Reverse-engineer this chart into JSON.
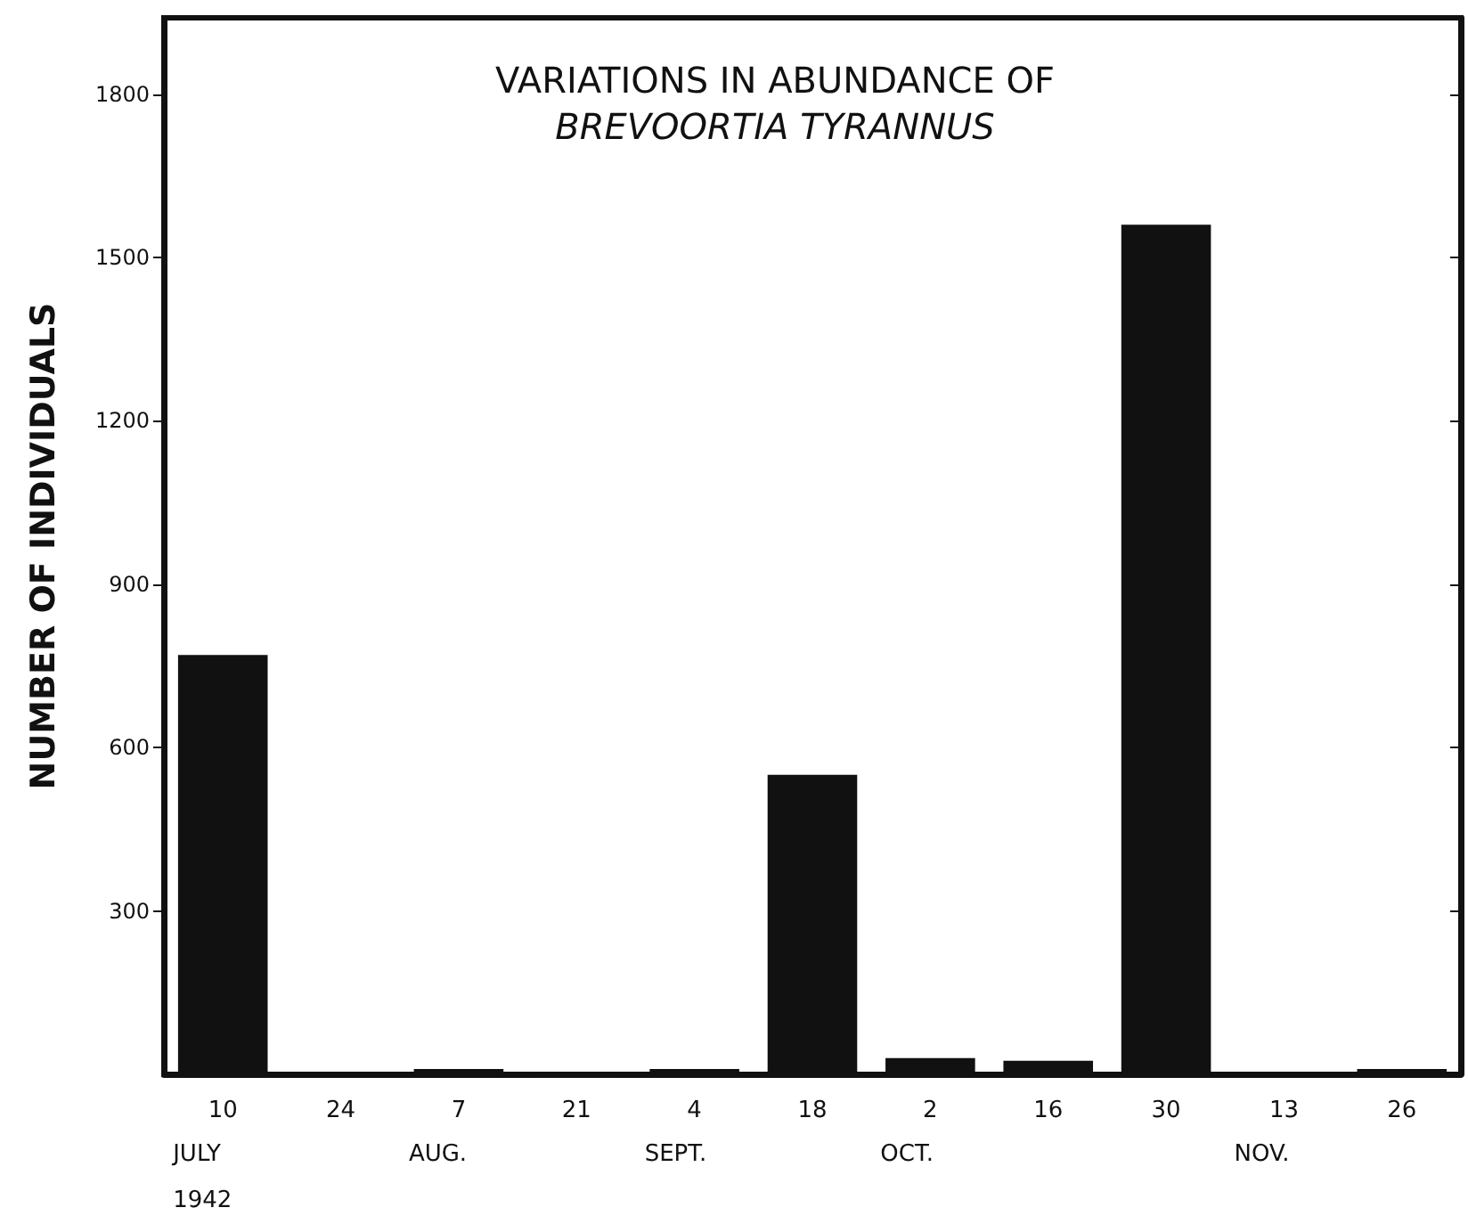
{
  "chart_data": {
    "type": "bar",
    "title": "VARIATIONS IN ABUNDANCE OF",
    "subtitle": "BREVOORTIA TYRANNUS",
    "ylabel": "NUMBER OF INDIVIDUALS",
    "categories": [
      "10",
      "24",
      "7",
      "21",
      "4",
      "18",
      "2",
      "16",
      "30",
      "13",
      "26"
    ],
    "values": [
      770,
      0,
      10,
      3,
      10,
      550,
      30,
      25,
      1560,
      0,
      10
    ],
    "color": "#111111",
    "ylim": [
      0,
      1940
    ],
    "yticks": [
      300,
      600,
      900,
      1200,
      1500,
      1800
    ],
    "grid": false,
    "annotations": [
      "JULY\n1942",
      "AUG.",
      "SEPT.",
      "OCT.",
      "NOV."
    ]
  }
}
